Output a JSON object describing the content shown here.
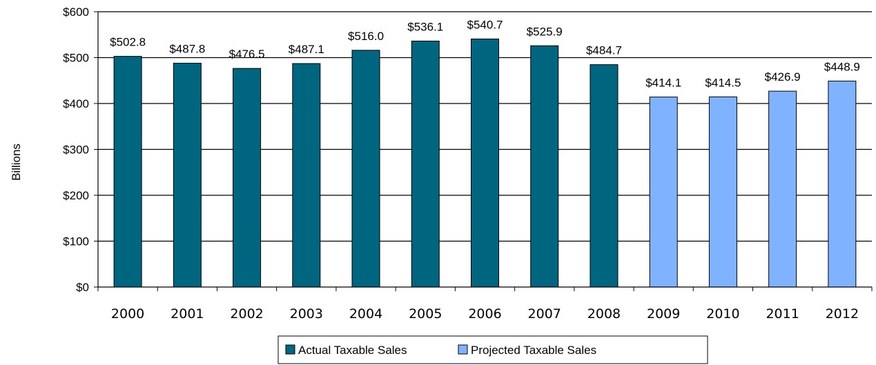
{
  "chart_data": {
    "type": "bar",
    "ylabel": "Billions",
    "xlabel": "",
    "ylim": [
      0,
      600
    ],
    "yticks": [
      "$0",
      "$100",
      "$200",
      "$300",
      "$400",
      "$500",
      "$600"
    ],
    "ytick_values": [
      0,
      100,
      200,
      300,
      400,
      500,
      600
    ],
    "grid": true,
    "legend_position": "bottom",
    "categories": [
      "2000",
      "2001",
      "2002",
      "2003",
      "2004",
      "2005",
      "2006",
      "2007",
      "2008",
      "2009",
      "2010",
      "2011",
      "2012"
    ],
    "values": [
      502.8,
      487.8,
      476.5,
      487.1,
      516.0,
      536.1,
      540.7,
      525.9,
      484.7,
      414.1,
      414.5,
      426.9,
      448.9
    ],
    "data_labels": [
      "$502.8",
      "$487.8",
      "$476.5",
      "$487.1",
      "$516.0",
      "$536.1",
      "$540.7",
      "$525.9",
      "$484.7",
      "$414.1",
      "$414.5",
      "$426.9",
      "$448.9"
    ],
    "series": [
      {
        "name": "Actual Taxable Sales",
        "color": "#006680",
        "categories": [
          "2000",
          "2001",
          "2002",
          "2003",
          "2004",
          "2005",
          "2006",
          "2007",
          "2008"
        ]
      },
      {
        "name": "Projected Taxable Sales",
        "color": "#7fb2ff",
        "categories": [
          "2009",
          "2010",
          "2011",
          "2012"
        ]
      }
    ]
  }
}
